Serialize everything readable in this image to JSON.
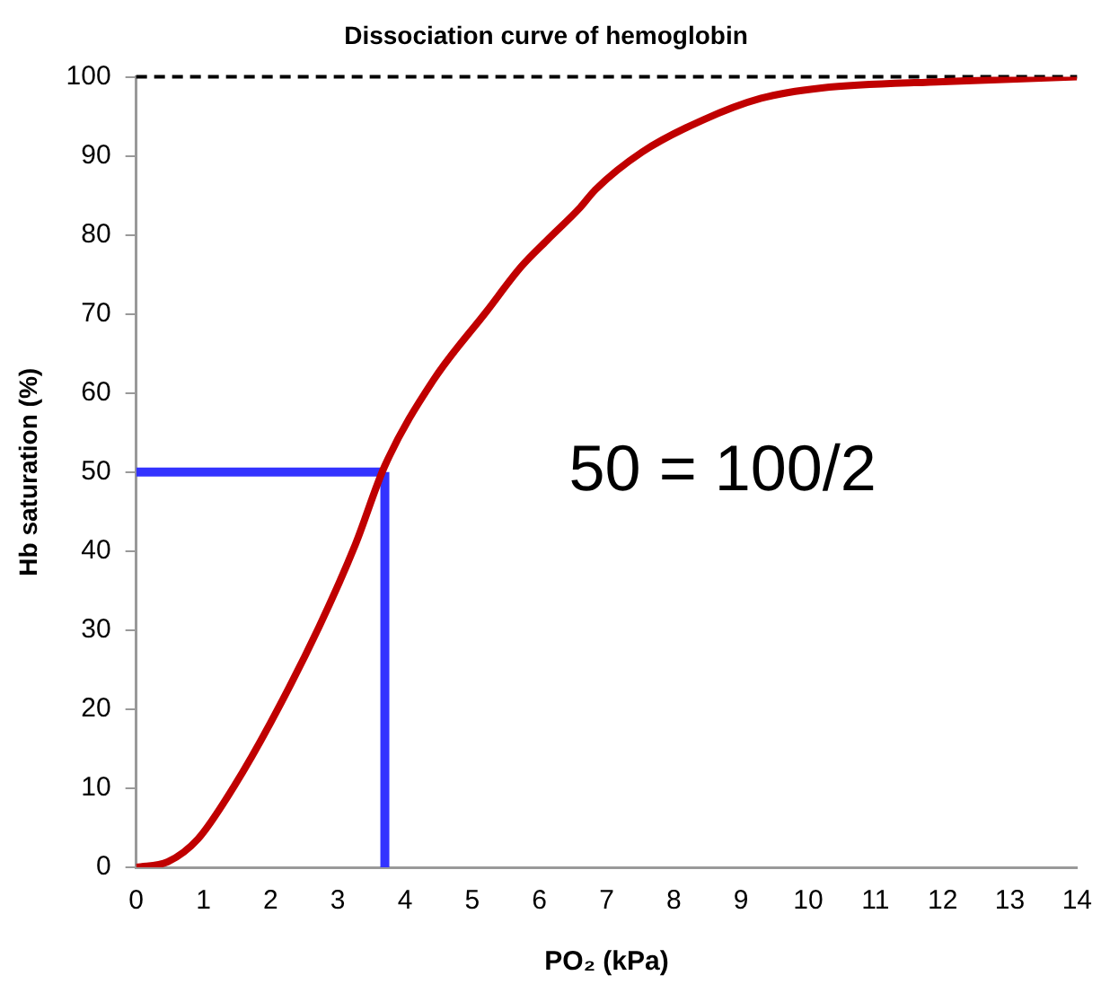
{
  "chart_data": {
    "type": "line",
    "title": "Dissociation curve of hemoglobin",
    "xlabel": "PO₂ (kPa)",
    "ylabel": "Hb saturation (%)",
    "xlim": [
      0,
      14
    ],
    "xticks": [
      0,
      1,
      2,
      3,
      4,
      5,
      6,
      7,
      8,
      9,
      10,
      11,
      12,
      13,
      14
    ],
    "ylim": [
      0,
      100
    ],
    "yticks": [
      0,
      10,
      20,
      30,
      40,
      50,
      60,
      70,
      80,
      90,
      100
    ],
    "marker": "none",
    "series": [
      {
        "type": "line",
        "color": "#c00000",
        "x": [
          0,
          0.47,
          0.92,
          1.46,
          2,
          2.72,
          3.26,
          3.7,
          4.42,
          5.22,
          5.73,
          6.11,
          6.61,
          6.83,
          7.53,
          8.42,
          9.3,
          10.2,
          12,
          14
        ],
        "values": [
          0,
          0.7,
          3.6,
          10.3,
          18.3,
          30.4,
          40.8,
          50.8,
          61.6,
          70.4,
          76,
          79.3,
          83.5,
          85.7,
          90.5,
          94.5,
          97.3,
          98.6,
          99.4,
          100
        ]
      },
      {
        "type": "line",
        "color": "#3333ff",
        "x": [
          0,
          3.7
        ],
        "values": [
          50,
          50
        ]
      },
      {
        "type": "line",
        "color": "#3333ff",
        "x": [
          3.7,
          3.7
        ],
        "values": [
          0,
          50
        ]
      }
    ],
    "ref_lines": [
      {
        "axis": "y",
        "value": 100,
        "color": "#000000",
        "line_style": "dashed"
      }
    ],
    "annotations": [
      "50 = 100/2"
    ]
  }
}
